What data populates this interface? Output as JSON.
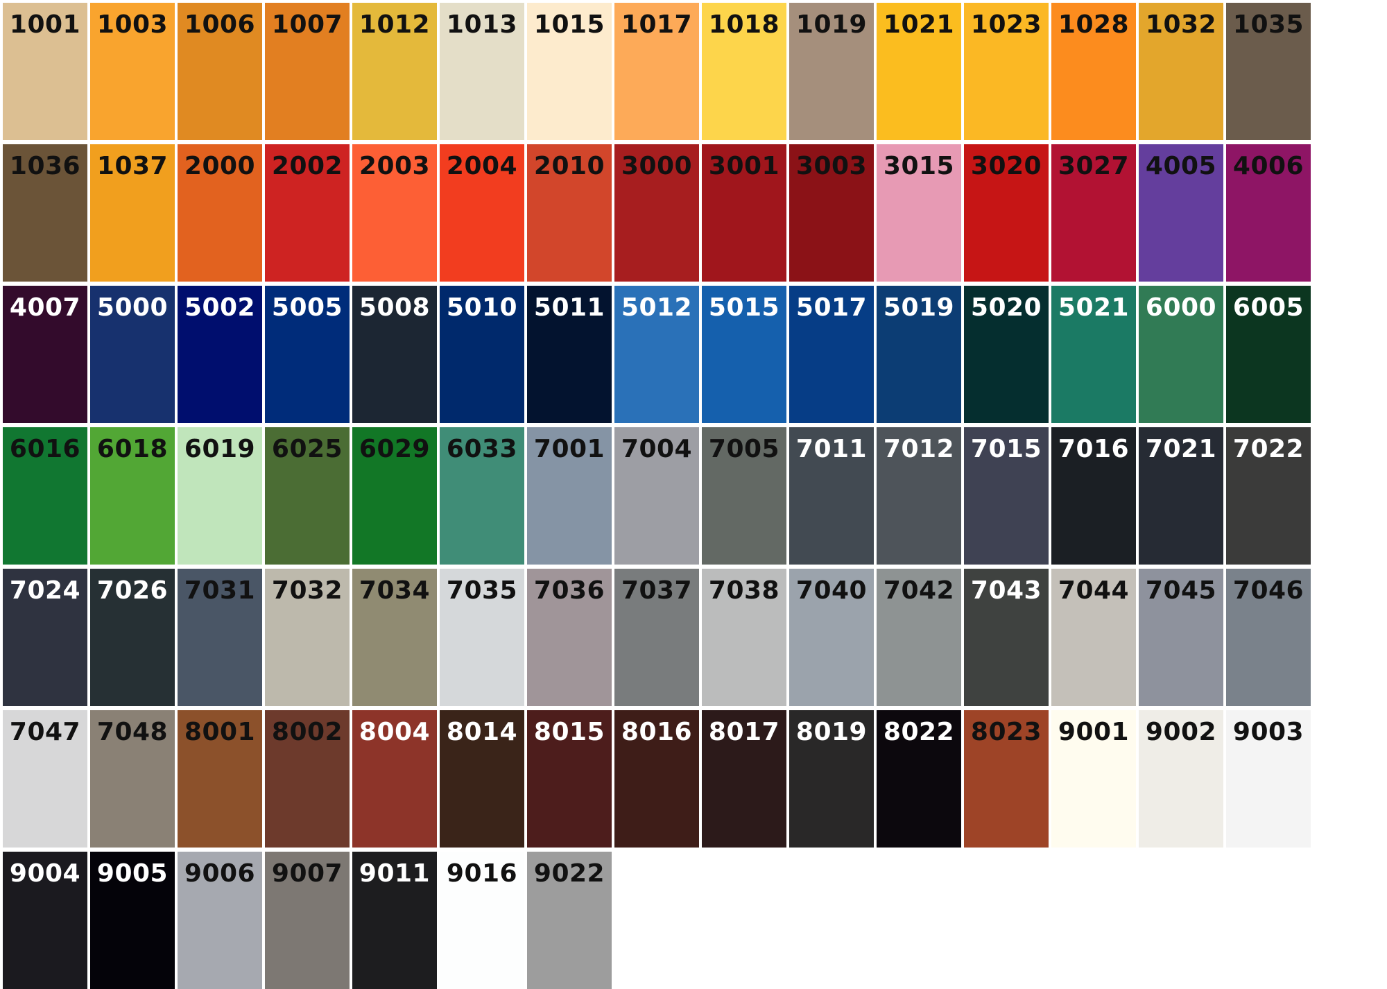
{
  "swatches": [
    {
      "code": "1001",
      "color": "#dcbf92",
      "text_color": "#111111"
    },
    {
      "code": "1003",
      "color": "#f9a42e",
      "text_color": "#111111"
    },
    {
      "code": "1006",
      "color": "#e08a22",
      "text_color": "#111111"
    },
    {
      "code": "1007",
      "color": "#e27f21",
      "text_color": "#111111"
    },
    {
      "code": "1012",
      "color": "#e4b93b",
      "text_color": "#111111"
    },
    {
      "code": "1013",
      "color": "#e4dec8",
      "text_color": "#111111"
    },
    {
      "code": "1015",
      "color": "#fdebcd",
      "text_color": "#111111"
    },
    {
      "code": "1017",
      "color": "#fdaa58",
      "text_color": "#111111"
    },
    {
      "code": "1018",
      "color": "#fdd54b",
      "text_color": "#111111"
    },
    {
      "code": "1019",
      "color": "#a58f7c",
      "text_color": "#111111"
    },
    {
      "code": "1021",
      "color": "#fbbd1f",
      "text_color": "#111111"
    },
    {
      "code": "1023",
      "color": "#fbb824",
      "text_color": "#111111"
    },
    {
      "code": "1028",
      "color": "#fc8c1e",
      "text_color": "#111111"
    },
    {
      "code": "1032",
      "color": "#e3a62c",
      "text_color": "#111111"
    },
    {
      "code": "1035",
      "color": "#6b5c4c",
      "text_color": "#111111"
    },
    {
      "code": "1036",
      "color": "#6b5438",
      "text_color": "#111111"
    },
    {
      "code": "1037",
      "color": "#f19f1e",
      "text_color": "#111111"
    },
    {
      "code": "2000",
      "color": "#e2621f",
      "text_color": "#111111"
    },
    {
      "code": "2002",
      "color": "#ce2322",
      "text_color": "#111111"
    },
    {
      "code": "2003",
      "color": "#fd5f35",
      "text_color": "#111111"
    },
    {
      "code": "2004",
      "color": "#f23d1f",
      "text_color": "#111111"
    },
    {
      "code": "2010",
      "color": "#d2462b",
      "text_color": "#111111"
    },
    {
      "code": "3000",
      "color": "#a71e1f",
      "text_color": "#111111"
    },
    {
      "code": "3001",
      "color": "#a0161c",
      "text_color": "#111111"
    },
    {
      "code": "3003",
      "color": "#8b1217",
      "text_color": "#111111"
    },
    {
      "code": "3015",
      "color": "#e79ab4",
      "text_color": "#111111"
    },
    {
      "code": "3020",
      "color": "#c61515",
      "text_color": "#111111"
    },
    {
      "code": "3027",
      "color": "#b21233",
      "text_color": "#111111"
    },
    {
      "code": "4005",
      "color": "#643e9d",
      "text_color": "#111111"
    },
    {
      "code": "4006",
      "color": "#8e1565",
      "text_color": "#111111"
    },
    {
      "code": "4007",
      "color": "#330b2c",
      "text_color": "#ffffff"
    },
    {
      "code": "5000",
      "color": "#17316e",
      "text_color": "#ffffff"
    },
    {
      "code": "5002",
      "color": "#000e6e",
      "text_color": "#ffffff"
    },
    {
      "code": "5005",
      "color": "#002c7a",
      "text_color": "#ffffff"
    },
    {
      "code": "5008",
      "color": "#1c2633",
      "text_color": "#ffffff"
    },
    {
      "code": "5010",
      "color": "#00296c",
      "text_color": "#ffffff"
    },
    {
      "code": "5011",
      "color": "#03132f",
      "text_color": "#ffffff"
    },
    {
      "code": "5012",
      "color": "#2a71b8",
      "text_color": "#ffffff"
    },
    {
      "code": "5015",
      "color": "#1560ad",
      "text_color": "#ffffff"
    },
    {
      "code": "5017",
      "color": "#063d86",
      "text_color": "#ffffff"
    },
    {
      "code": "5019",
      "color": "#0c3d74",
      "text_color": "#ffffff"
    },
    {
      "code": "5020",
      "color": "#052e2f",
      "text_color": "#ffffff"
    },
    {
      "code": "5021",
      "color": "#1b7a64",
      "text_color": "#ffffff"
    },
    {
      "code": "6000",
      "color": "#317b55",
      "text_color": "#ffffff"
    },
    {
      "code": "6005",
      "color": "#0c3620",
      "text_color": "#ffffff"
    },
    {
      "code": "6016",
      "color": "#117731",
      "text_color": "#111111"
    },
    {
      "code": "6018",
      "color": "#52a735",
      "text_color": "#111111"
    },
    {
      "code": "6019",
      "color": "#c0e5bb",
      "text_color": "#111111"
    },
    {
      "code": "6025",
      "color": "#4b6d34",
      "text_color": "#111111"
    },
    {
      "code": "6029",
      "color": "#127726",
      "text_color": "#111111"
    },
    {
      "code": "6033",
      "color": "#408d77",
      "text_color": "#111111"
    },
    {
      "code": "7001",
      "color": "#8594a5",
      "text_color": "#111111"
    },
    {
      "code": "7004",
      "color": "#9d9ea4",
      "text_color": "#111111"
    },
    {
      "code": "7005",
      "color": "#636964",
      "text_color": "#111111"
    },
    {
      "code": "7011",
      "color": "#424a52",
      "text_color": "#ffffff"
    },
    {
      "code": "7012",
      "color": "#4e545a",
      "text_color": "#ffffff"
    },
    {
      "code": "7015",
      "color": "#3f4253",
      "text_color": "#ffffff"
    },
    {
      "code": "7016",
      "color": "#1b1f24",
      "text_color": "#ffffff"
    },
    {
      "code": "7021",
      "color": "#262b34",
      "text_color": "#ffffff"
    },
    {
      "code": "7022",
      "color": "#3b3b3a",
      "text_color": "#ffffff"
    },
    {
      "code": "7024",
      "color": "#2f3340",
      "text_color": "#ffffff"
    },
    {
      "code": "7026",
      "color": "#263034",
      "text_color": "#ffffff"
    },
    {
      "code": "7031",
      "color": "#4a5666",
      "text_color": "#111111"
    },
    {
      "code": "7032",
      "color": "#bdb9ac",
      "text_color": "#111111"
    },
    {
      "code": "7034",
      "color": "#908b72",
      "text_color": "#111111"
    },
    {
      "code": "7035",
      "color": "#d5d8da",
      "text_color": "#111111"
    },
    {
      "code": "7036",
      "color": "#a09599",
      "text_color": "#111111"
    },
    {
      "code": "7037",
      "color": "#797c7d",
      "text_color": "#111111"
    },
    {
      "code": "7038",
      "color": "#bbbcbc",
      "text_color": "#111111"
    },
    {
      "code": "7040",
      "color": "#9ba3ac",
      "text_color": "#111111"
    },
    {
      "code": "7042",
      "color": "#8e9393",
      "text_color": "#111111"
    },
    {
      "code": "7043",
      "color": "#3f4240",
      "text_color": "#ffffff"
    },
    {
      "code": "7044",
      "color": "#c4c0b9",
      "text_color": "#111111"
    },
    {
      "code": "7045",
      "color": "#8e929d",
      "text_color": "#111111"
    },
    {
      "code": "7046",
      "color": "#7a828b",
      "text_color": "#111111"
    },
    {
      "code": "7047",
      "color": "#d7d7d8",
      "text_color": "#111111"
    },
    {
      "code": "7048",
      "color": "#8a8175",
      "text_color": "#111111"
    },
    {
      "code": "8001",
      "color": "#8c512b",
      "text_color": "#111111"
    },
    {
      "code": "8002",
      "color": "#6d3a2c",
      "text_color": "#111111"
    },
    {
      "code": "8004",
      "color": "#8d3429",
      "text_color": "#ffffff"
    },
    {
      "code": "8014",
      "color": "#3a2419",
      "text_color": "#ffffff"
    },
    {
      "code": "8015",
      "color": "#4d1d1c",
      "text_color": "#ffffff"
    },
    {
      "code": "8016",
      "color": "#3e1d18",
      "text_color": "#ffffff"
    },
    {
      "code": "8017",
      "color": "#2c1a1a",
      "text_color": "#ffffff"
    },
    {
      "code": "8019",
      "color": "#292828",
      "text_color": "#ffffff"
    },
    {
      "code": "8022",
      "color": "#0c080d",
      "text_color": "#ffffff"
    },
    {
      "code": "8023",
      "color": "#9e4427",
      "text_color": "#111111"
    },
    {
      "code": "9001",
      "color": "#fffcef",
      "text_color": "#111111"
    },
    {
      "code": "9002",
      "color": "#efede7",
      "text_color": "#111111"
    },
    {
      "code": "9003",
      "color": "#f4f4f4",
      "text_color": "#111111"
    },
    {
      "code": "9004",
      "color": "#1b1a1f",
      "text_color": "#ffffff"
    },
    {
      "code": "9005",
      "color": "#040309",
      "text_color": "#ffffff"
    },
    {
      "code": "9006",
      "color": "#a6a9b0",
      "text_color": "#111111"
    },
    {
      "code": "9007",
      "color": "#7d7873",
      "text_color": "#111111"
    },
    {
      "code": "9011",
      "color": "#1d1d1f",
      "text_color": "#ffffff"
    },
    {
      "code": "9016",
      "color": "#fdfefe",
      "text_color": "#111111"
    },
    {
      "code": "9022",
      "color": "#9d9d9d",
      "text_color": "#111111"
    }
  ]
}
